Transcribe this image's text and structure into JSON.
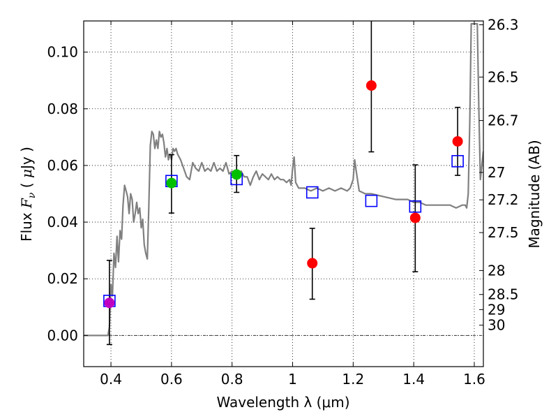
{
  "chart_data": {
    "type": "scatter",
    "xlabel": "Wavelength  λ (μm)",
    "ylabel": "Flux  F_ν  ( μJy )",
    "ylabel_parts": {
      "prefix": "Flux  ",
      "symbol": "F",
      "subscript": "ν",
      "paren_open": "  ( ",
      "mu": "μ",
      "unit": "Jy )"
    },
    "y2label": "Magnitude (AB)",
    "xlim": [
      0.31,
      1.63
    ],
    "ylim": [
      -0.011,
      0.111
    ],
    "grid": true,
    "x_ticks": [
      0.4,
      0.6,
      0.8,
      1.0,
      1.2,
      1.4,
      1.6
    ],
    "x_tick_labels": [
      "0.4",
      "0.6",
      "0.8",
      "1",
      "1.2",
      "1.4",
      "1.6"
    ],
    "y_ticks": [
      0.0,
      0.02,
      0.04,
      0.06,
      0.08,
      0.1
    ],
    "y_tick_labels": [
      "0.00",
      "0.02",
      "0.04",
      "0.06",
      "0.08",
      "0.10"
    ],
    "y2_ticks": [
      26.3,
      26.5,
      26.7,
      27,
      27.2,
      27.5,
      28,
      28.5,
      29,
      30
    ],
    "y2_tick_labels": [
      "26.3",
      "26.5",
      "26.7",
      "27",
      "27.2",
      "27.5",
      "28",
      "28.5",
      "29",
      "30"
    ],
    "zero_line": 0.0,
    "series": [
      {
        "name": "model_spectrum",
        "kind": "line",
        "color": "#808080",
        "x": [
          0.31,
          0.38,
          0.39,
          0.395,
          0.4,
          0.405,
          0.41,
          0.415,
          0.42,
          0.425,
          0.43,
          0.435,
          0.44,
          0.445,
          0.45,
          0.455,
          0.46,
          0.465,
          0.47,
          0.475,
          0.48,
          0.485,
          0.49,
          0.495,
          0.5,
          0.505,
          0.51,
          0.515,
          0.52,
          0.525,
          0.53,
          0.535,
          0.54,
          0.545,
          0.55,
          0.555,
          0.56,
          0.565,
          0.57,
          0.575,
          0.58,
          0.585,
          0.59,
          0.595,
          0.6,
          0.605,
          0.61,
          0.615,
          0.62,
          0.63,
          0.64,
          0.65,
          0.66,
          0.67,
          0.68,
          0.69,
          0.7,
          0.71,
          0.72,
          0.73,
          0.74,
          0.75,
          0.76,
          0.77,
          0.78,
          0.79,
          0.8,
          0.81,
          0.82,
          0.83,
          0.84,
          0.85,
          0.86,
          0.87,
          0.88,
          0.89,
          0.9,
          0.91,
          0.92,
          0.93,
          0.94,
          0.95,
          0.96,
          0.97,
          0.98,
          0.99,
          0.995,
          1.0,
          1.005,
          1.01,
          1.02,
          1.04,
          1.06,
          1.08,
          1.1,
          1.12,
          1.14,
          1.16,
          1.18,
          1.19,
          1.2,
          1.205,
          1.21,
          1.22,
          1.24,
          1.26,
          1.3,
          1.34,
          1.38,
          1.4,
          1.42,
          1.44,
          1.46,
          1.48,
          1.5,
          1.52,
          1.54,
          1.56,
          1.57,
          1.575,
          1.58,
          1.585,
          1.59,
          1.6,
          1.61,
          1.615,
          1.62,
          1.625,
          1.63
        ],
        "y": [
          0.0,
          0.0,
          0.0,
          0.003,
          0.018,
          0.014,
          0.029,
          0.024,
          0.035,
          0.026,
          0.037,
          0.034,
          0.046,
          0.053,
          0.051,
          0.049,
          0.043,
          0.05,
          0.048,
          0.04,
          0.043,
          0.047,
          0.043,
          0.045,
          0.038,
          0.041,
          0.032,
          0.029,
          0.027,
          0.045,
          0.067,
          0.072,
          0.071,
          0.066,
          0.069,
          0.066,
          0.072,
          0.07,
          0.071,
          0.068,
          0.063,
          0.066,
          0.062,
          0.064,
          0.062,
          0.066,
          0.065,
          0.066,
          0.064,
          0.062,
          0.059,
          0.056,
          0.055,
          0.061,
          0.059,
          0.058,
          0.061,
          0.058,
          0.059,
          0.058,
          0.061,
          0.058,
          0.059,
          0.058,
          0.061,
          0.057,
          0.058,
          0.056,
          0.057,
          0.058,
          0.056,
          0.056,
          0.053,
          0.056,
          0.058,
          0.055,
          0.057,
          0.056,
          0.055,
          0.057,
          0.055,
          0.056,
          0.055,
          0.055,
          0.054,
          0.055,
          0.053,
          0.059,
          0.063,
          0.054,
          0.052,
          0.052,
          0.051,
          0.052,
          0.051,
          0.052,
          0.051,
          0.052,
          0.051,
          0.052,
          0.055,
          0.062,
          0.058,
          0.051,
          0.05,
          0.05,
          0.049,
          0.048,
          0.048,
          0.047,
          0.047,
          0.046,
          0.046,
          0.046,
          0.046,
          0.046,
          0.045,
          0.046,
          0.046,
          0.045,
          0.05,
          0.075,
          0.11,
          0.11,
          0.11,
          0.08,
          0.055,
          0.06,
          0.065
        ]
      },
      {
        "name": "model_bandpass",
        "kind": "open-square",
        "color": "#0000ff",
        "x": [
          0.395,
          0.6,
          0.815,
          1.065,
          1.26,
          1.405,
          1.545
        ],
        "y": [
          0.0122,
          0.0545,
          0.0552,
          0.0505,
          0.0475,
          0.0455,
          0.0615
        ]
      },
      {
        "name": "obs_red",
        "kind": "dot",
        "color": "#ff0000",
        "x": [
          1.065,
          1.26,
          1.405,
          1.545
        ],
        "y": [
          0.0255,
          0.0882,
          0.0415,
          0.0685
        ],
        "yerr_low": [
          0.0128,
          0.0648,
          0.0225,
          0.0565
        ],
        "yerr_high": [
          0.0378,
          0.112,
          0.0602,
          0.0805
        ]
      },
      {
        "name": "obs_green",
        "kind": "dot",
        "color": "#00c000",
        "x": [
          0.6,
          0.815
        ],
        "y": [
          0.0538,
          0.0568
        ],
        "yerr_low": [
          0.0432,
          0.0505
        ],
        "yerr_high": [
          0.0638,
          0.0635
        ]
      },
      {
        "name": "obs_magenta",
        "kind": "dot",
        "color": "#c000c0",
        "x": [
          0.395
        ],
        "y": [
          0.0115
        ],
        "yerr_low": [
          -0.0032
        ],
        "yerr_high": [
          0.0265
        ]
      }
    ]
  }
}
